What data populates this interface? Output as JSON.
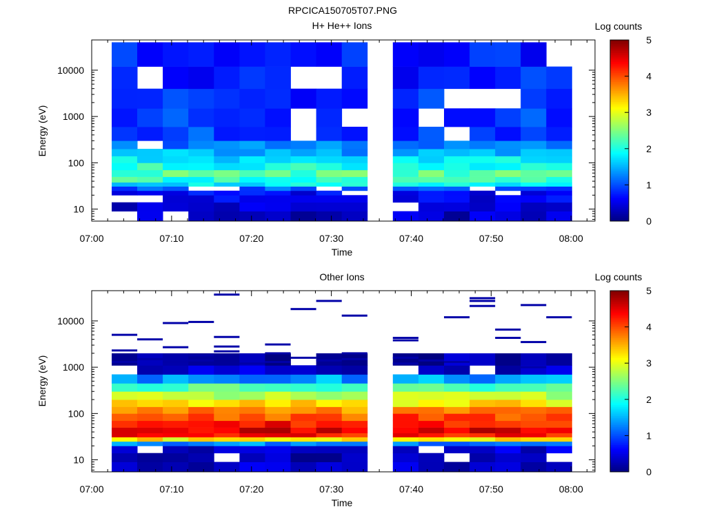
{
  "figure_title": "RPCICA150705T07.PNG",
  "chart_data": [
    {
      "type": "heatmap",
      "title": "H+ He++ Ions",
      "xlabel": "Time",
      "ylabel": "Energy (eV)",
      "colorbar_label": "Log counts",
      "x_ticks": [
        "07:00",
        "07:10",
        "07:20",
        "07:30",
        "07:40",
        "07:50",
        "08:00"
      ],
      "x_range_minutes": [
        0,
        63
      ],
      "y_scale": "log",
      "y_range": [
        5.5,
        45000
      ],
      "y_ticks": [
        {
          "value": 10,
          "label": "10"
        },
        {
          "value": 100,
          "label": "100"
        },
        {
          "value": 1000,
          "label": "1000"
        },
        {
          "value": 10000,
          "label": "10000"
        }
      ],
      "colorbar_range": [
        0,
        5
      ],
      "colorbar_ticks": [
        "0",
        "1",
        "2",
        "3",
        "4",
        "5"
      ],
      "data_gap_minutes": [
        34.5,
        37.7
      ],
      "time_bins_minutes": [
        [
          2.5,
          5.7
        ],
        [
          5.7,
          8.9
        ],
        [
          8.9,
          12.1
        ],
        [
          12.1,
          15.3
        ],
        [
          15.3,
          18.5
        ],
        [
          18.5,
          21.7
        ],
        [
          21.7,
          24.9
        ],
        [
          24.9,
          28.1
        ],
        [
          28.1,
          31.3
        ],
        [
          31.3,
          34.5
        ],
        [
          37.7,
          40.9
        ],
        [
          40.9,
          44.1
        ],
        [
          44.1,
          47.3
        ],
        [
          47.3,
          50.5
        ],
        [
          50.5,
          53.7
        ],
        [
          53.7,
          56.9
        ],
        [
          56.9,
          60.1
        ]
      ],
      "energy_profile": [
        {
          "e_min": 5.5,
          "e_max": 9,
          "log_counts": 0.3
        },
        {
          "e_min": 9,
          "e_max": 14,
          "log_counts": 0.4
        },
        {
          "e_min": 14,
          "e_max": 20,
          "log_counts": 0.5
        },
        {
          "e_min": 20,
          "e_max": 25,
          "log_counts": 0.6
        },
        {
          "e_min": 25,
          "e_max": 31,
          "log_counts": 1.0
        },
        {
          "e_min": 31,
          "e_max": 38,
          "log_counts": 1.8
        },
        {
          "e_min": 38,
          "e_max": 50,
          "log_counts": 2.1
        },
        {
          "e_min": 50,
          "e_max": 70,
          "log_counts": 2.3
        },
        {
          "e_min": 70,
          "e_max": 100,
          "log_counts": 2.0
        },
        {
          "e_min": 100,
          "e_max": 140,
          "log_counts": 1.75
        },
        {
          "e_min": 140,
          "e_max": 200,
          "log_counts": 1.45
        },
        {
          "e_min": 200,
          "e_max": 300,
          "log_counts": 1.15
        },
        {
          "e_min": 300,
          "e_max": 600,
          "log_counts": 0.9
        },
        {
          "e_min": 600,
          "e_max": 1500,
          "log_counts": 0.85
        },
        {
          "e_min": 1500,
          "e_max": 4000,
          "log_counts": 0.8
        },
        {
          "e_min": 4000,
          "e_max": 12000,
          "log_counts": 0.75
        },
        {
          "e_min": 12000,
          "e_max": 40000,
          "log_counts": 0.7
        }
      ]
    },
    {
      "type": "heatmap",
      "title": "Other Ions",
      "xlabel": "Time",
      "ylabel": "Energy (eV)",
      "colorbar_label": "Log counts",
      "x_ticks": [
        "07:00",
        "07:10",
        "07:20",
        "07:30",
        "07:40",
        "07:50",
        "08:00"
      ],
      "x_range_minutes": [
        0,
        63
      ],
      "y_scale": "log",
      "y_range": [
        5.5,
        45000
      ],
      "y_ticks": [
        {
          "value": 10,
          "label": "10"
        },
        {
          "value": 100,
          "label": "100"
        },
        {
          "value": 1000,
          "label": "1000"
        },
        {
          "value": 10000,
          "label": "10000"
        }
      ],
      "colorbar_range": [
        0,
        5
      ],
      "colorbar_ticks": [
        "0",
        "1",
        "2",
        "3",
        "4",
        "5"
      ],
      "data_gap_minutes": [
        34.5,
        37.7
      ],
      "time_bins_minutes": [
        [
          2.5,
          5.7
        ],
        [
          5.7,
          8.9
        ],
        [
          8.9,
          12.1
        ],
        [
          12.1,
          15.3
        ],
        [
          15.3,
          18.5
        ],
        [
          18.5,
          21.7
        ],
        [
          21.7,
          24.9
        ],
        [
          24.9,
          28.1
        ],
        [
          28.1,
          31.3
        ],
        [
          31.3,
          34.5
        ],
        [
          37.7,
          40.9
        ],
        [
          40.9,
          44.1
        ],
        [
          44.1,
          47.3
        ],
        [
          47.3,
          50.5
        ],
        [
          50.5,
          53.7
        ],
        [
          53.7,
          56.9
        ],
        [
          56.9,
          60.1
        ]
      ],
      "energy_profile": [
        {
          "e_min": 5.5,
          "e_max": 9,
          "log_counts": 0.3
        },
        {
          "e_min": 9,
          "e_max": 14,
          "log_counts": 0.2
        },
        {
          "e_min": 14,
          "e_max": 20,
          "log_counts": 0.35
        },
        {
          "e_min": 20,
          "e_max": 25,
          "log_counts": 1.3
        },
        {
          "e_min": 25,
          "e_max": 31,
          "log_counts": 3.2
        },
        {
          "e_min": 31,
          "e_max": 38,
          "log_counts": 4.3
        },
        {
          "e_min": 38,
          "e_max": 50,
          "log_counts": 4.5
        },
        {
          "e_min": 50,
          "e_max": 70,
          "log_counts": 4.3
        },
        {
          "e_min": 70,
          "e_max": 100,
          "log_counts": 4.0
        },
        {
          "e_min": 100,
          "e_max": 140,
          "log_counts": 3.65
        },
        {
          "e_min": 140,
          "e_max": 200,
          "log_counts": 3.2
        },
        {
          "e_min": 200,
          "e_max": 300,
          "log_counts": 2.7
        },
        {
          "e_min": 300,
          "e_max": 450,
          "log_counts": 2.2
        },
        {
          "e_min": 450,
          "e_max": 700,
          "log_counts": 1.4
        },
        {
          "e_min": 700,
          "e_max": 1100,
          "log_counts": 0.35
        },
        {
          "e_min": 1100,
          "e_max": 2000,
          "log_counts": 0.15
        }
      ],
      "sparse_high_energy_lines": [
        {
          "t": 3,
          "e": 5000
        },
        {
          "t": 3,
          "e": 2300
        },
        {
          "t": 3,
          "e": 1300
        },
        {
          "t": 7,
          "e": 4000
        },
        {
          "t": 7,
          "e": 1500
        },
        {
          "t": 10,
          "e": 9000
        },
        {
          "t": 10,
          "e": 2700
        },
        {
          "t": 10,
          "e": 1300
        },
        {
          "t": 13,
          "e": 9500
        },
        {
          "t": 13,
          "e": 1800
        },
        {
          "t": 13,
          "e": 1400
        },
        {
          "t": 16,
          "e": 37000
        },
        {
          "t": 16,
          "e": 4500
        },
        {
          "t": 16,
          "e": 2800
        },
        {
          "t": 16,
          "e": 2200
        },
        {
          "t": 19,
          "e": 1200
        },
        {
          "t": 22,
          "e": 3100
        },
        {
          "t": 22,
          "e": 2000
        },
        {
          "t": 22,
          "e": 1300
        },
        {
          "t": 26,
          "e": 18000
        },
        {
          "t": 26,
          "e": 1600
        },
        {
          "t": 29,
          "e": 27000
        },
        {
          "t": 29,
          "e": 1400
        },
        {
          "t": 32,
          "e": 13000
        },
        {
          "t": 32,
          "e": 2000
        },
        {
          "t": 32,
          "e": 1500
        },
        {
          "t": 39,
          "e": 4300
        },
        {
          "t": 39,
          "e": 3800
        },
        {
          "t": 39,
          "e": 1600
        },
        {
          "t": 39,
          "e": 1200
        },
        {
          "t": 42,
          "e": 1400
        },
        {
          "t": 46,
          "e": 12000
        },
        {
          "t": 46,
          "e": 1300
        },
        {
          "t": 49,
          "e": 31000
        },
        {
          "t": 49,
          "e": 27000
        },
        {
          "t": 49,
          "e": 21000
        },
        {
          "t": 52,
          "e": 6500
        },
        {
          "t": 52,
          "e": 4300
        },
        {
          "t": 55,
          "e": 22000
        },
        {
          "t": 55,
          "e": 3500
        },
        {
          "t": 55,
          "e": 1000
        },
        {
          "t": 58,
          "e": 12000
        }
      ]
    }
  ]
}
